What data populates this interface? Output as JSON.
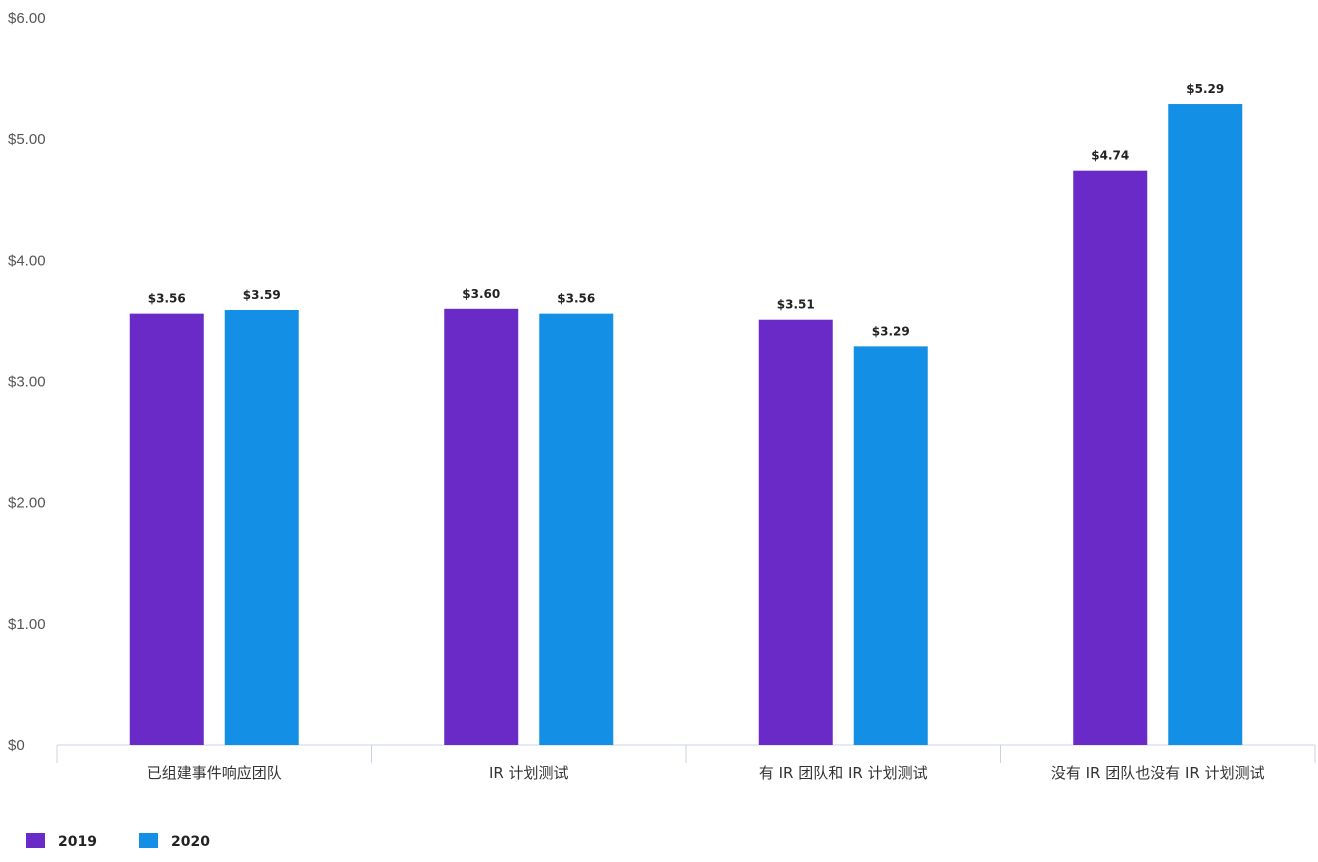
{
  "chart_data": {
    "type": "bar",
    "categories": [
      "已组建事件响应团队",
      "IR 计划测试",
      "有 IR 团队和 IR 计划测试",
      "没有 IR 团队也没有 IR 计划测试"
    ],
    "series": [
      {
        "name": "2019",
        "color": "#6a2ac8",
        "values": [
          3.56,
          3.6,
          3.51,
          4.74
        ],
        "labels": [
          "$3.56",
          "$3.60",
          "$3.51",
          "$4.74"
        ]
      },
      {
        "name": "2020",
        "color": "#1390e5",
        "values": [
          3.59,
          3.56,
          3.29,
          5.29
        ],
        "labels": [
          "$3.59",
          "$3.56",
          "$3.29",
          "$5.29"
        ]
      }
    ],
    "ylim": [
      0,
      6
    ],
    "yticks": [
      0,
      1,
      2,
      3,
      4,
      5,
      6
    ],
    "ytick_labels": [
      "$0",
      "$1.00",
      "$2.00",
      "$3.00",
      "$4.00",
      "$5.00",
      "$6.00"
    ],
    "title": "",
    "xlabel": "",
    "ylabel": "",
    "grid": false,
    "legend_position": "bottom-left"
  }
}
